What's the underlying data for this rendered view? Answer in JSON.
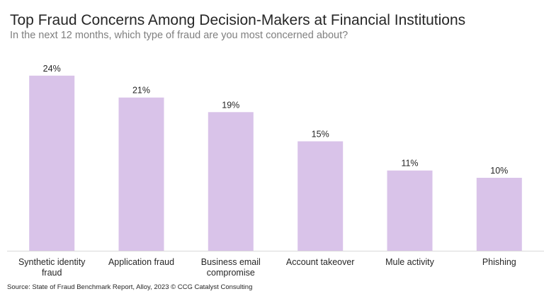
{
  "header": {
    "title": "Top Fraud Concerns Among Decision-Makers at Financial Institutions",
    "subtitle": "In the next 12 months, which type of fraud are you most concerned about?"
  },
  "footer": {
    "source": "Source: State of Fraud Benchmark Report, Alloy, 2023 © CCG Catalyst Consulting"
  },
  "colors": {
    "bar": "#d9c3e9",
    "axis": "#d9d9d9",
    "text": "#262626"
  },
  "chart_data": {
    "type": "bar",
    "title": "Top Fraud Concerns Among Decision-Makers at Financial Institutions",
    "subtitle": "In the next 12 months, which type of fraud are you most concerned about?",
    "categories": [
      [
        "Synthetic identity",
        "fraud"
      ],
      [
        "Application fraud"
      ],
      [
        "Business email",
        "compromise"
      ],
      [
        "Account takeover"
      ],
      [
        "Mule activity"
      ],
      [
        "Phishing"
      ]
    ],
    "values": [
      24,
      21,
      19,
      15,
      11,
      10
    ],
    "data_labels": [
      "24%",
      "21%",
      "19%",
      "15%",
      "11%",
      "10%"
    ],
    "unit": "%",
    "ylim": [
      0,
      25
    ],
    "grid": false,
    "legend": "none",
    "xlabel": "",
    "ylabel": ""
  }
}
